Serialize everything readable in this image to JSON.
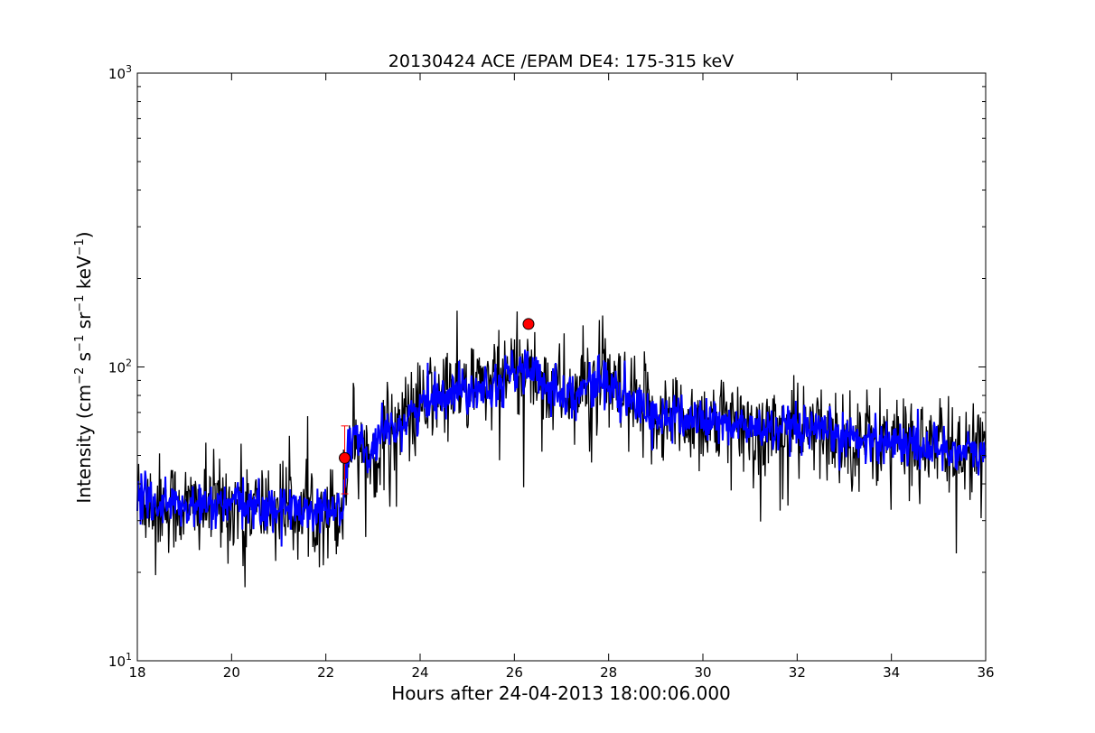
{
  "chart_data": {
    "type": "line",
    "title": "20130424 ACE /EPAM DE4: 175-315 keV",
    "xlabel": "Hours after 24-04-2013 18:00:06.000",
    "ylabel": {
      "prefix": "Intensity (cm",
      "sup1": "−2",
      "s": " s",
      "sup2": "−1",
      "sr": " sr",
      "sup3": "−1",
      "kev": " keV",
      "sup4": "−1",
      "suffix": ")"
    },
    "xlim": [
      18,
      36
    ],
    "ylim": [
      10,
      1000
    ],
    "yscale": "log",
    "grid": false,
    "x_ticks": [
      "18",
      "20",
      "22",
      "24",
      "26",
      "28",
      "30",
      "32",
      "34",
      "36"
    ],
    "y_ticks": [
      {
        "base": "10",
        "exp": "1"
      },
      {
        "base": "10",
        "exp": "2"
      },
      {
        "base": "10",
        "exp": "3"
      }
    ],
    "series": [
      {
        "color": "#000000",
        "style": "noisy-line",
        "trend": [
          [
            18.0,
            36
          ],
          [
            19.0,
            33
          ],
          [
            20.0,
            34
          ],
          [
            21.0,
            33
          ],
          [
            22.0,
            33
          ],
          [
            22.35,
            32
          ],
          [
            22.45,
            48
          ],
          [
            22.6,
            62
          ],
          [
            22.9,
            48
          ],
          [
            23.3,
            60
          ],
          [
            23.8,
            68
          ],
          [
            24.3,
            80
          ],
          [
            25.0,
            85
          ],
          [
            25.6,
            88
          ],
          [
            26.2,
            100
          ],
          [
            26.6,
            88
          ],
          [
            27.3,
            80
          ],
          [
            27.8,
            92
          ],
          [
            28.3,
            78
          ],
          [
            29.0,
            68
          ],
          [
            30.0,
            66
          ],
          [
            31.0,
            62
          ],
          [
            32.0,
            60
          ],
          [
            33.0,
            58
          ],
          [
            34.0,
            56
          ],
          [
            35.0,
            53
          ],
          [
            36.0,
            50
          ]
        ]
      },
      {
        "color": "#0000ff",
        "style": "smoothed-line",
        "trend": [
          [
            18.0,
            36
          ],
          [
            19.0,
            33
          ],
          [
            20.0,
            34
          ],
          [
            21.0,
            33
          ],
          [
            22.0,
            33
          ],
          [
            22.35,
            32
          ],
          [
            22.45,
            48
          ],
          [
            22.6,
            62
          ],
          [
            22.9,
            48
          ],
          [
            23.3,
            60
          ],
          [
            23.8,
            68
          ],
          [
            24.3,
            80
          ],
          [
            25.0,
            85
          ],
          [
            25.6,
            88
          ],
          [
            26.2,
            100
          ],
          [
            26.6,
            88
          ],
          [
            27.3,
            80
          ],
          [
            27.8,
            92
          ],
          [
            28.3,
            78
          ],
          [
            29.0,
            68
          ],
          [
            30.0,
            66
          ],
          [
            31.0,
            62
          ],
          [
            32.0,
            60
          ],
          [
            33.0,
            58
          ],
          [
            34.0,
            56
          ],
          [
            35.0,
            53
          ],
          [
            36.0,
            50
          ]
        ]
      }
    ],
    "markers": [
      {
        "x": 22.4,
        "y": 49,
        "color": "#ff0000",
        "err_low": 37,
        "err_high": 63
      },
      {
        "x": 26.3,
        "y": 140,
        "color": "#ff0000"
      }
    ]
  }
}
